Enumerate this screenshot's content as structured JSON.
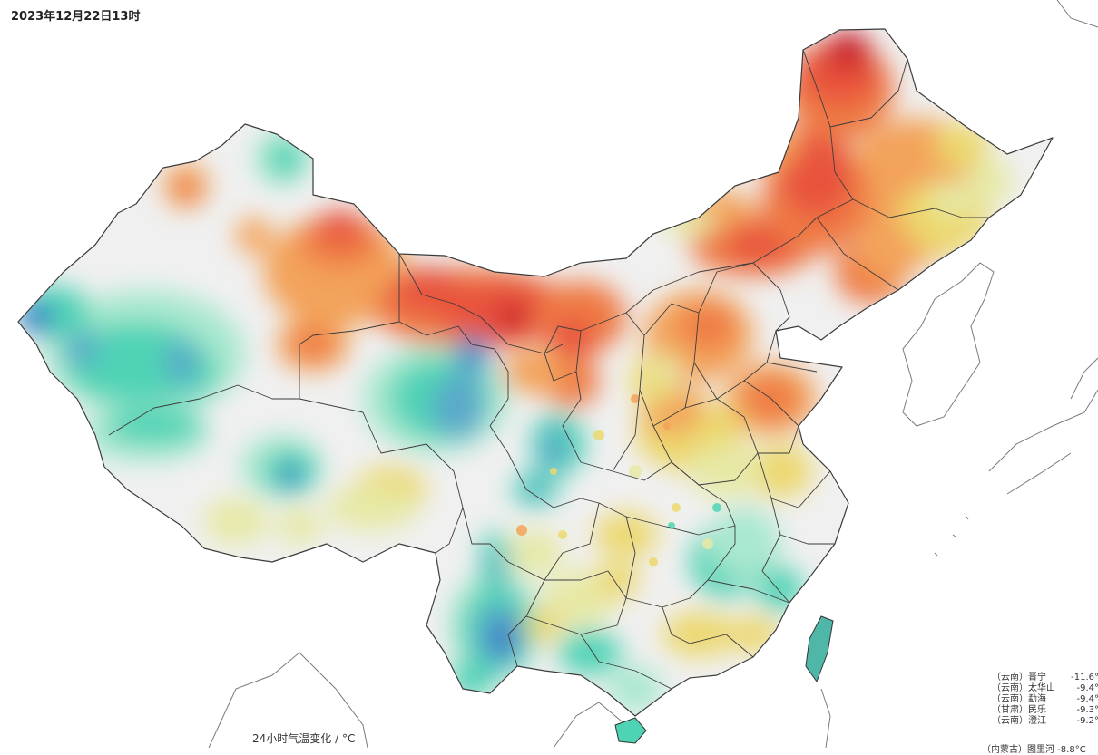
{
  "header": {
    "timestamp": "2023年12月22日13时"
  },
  "legend": {
    "title": "24小时气温变化 / °C"
  },
  "colors": {
    "deep_red": "#c81e2a",
    "red": "#e8523c",
    "orange_red": "#ef7a45",
    "orange": "#f3a35a",
    "yellow": "#ecd86e",
    "light_yellow": "#e6e9a4",
    "neutral": "#f0f0f0",
    "mint": "#a8e8cf",
    "teal": "#4fd3b5",
    "steel_blue": "#5aa9c9",
    "blue": "#3a78c8",
    "sea": "#ffffff",
    "border": "#3c3c3c"
  },
  "ranking": [
    {
      "loc": "（云南）晋宁",
      "val": "-11.6°C"
    },
    {
      "loc": "（云南）太华山",
      "val": "-9.4°C"
    },
    {
      "loc": "（云南）勐海",
      "val": "-9.4°C"
    },
    {
      "loc": "（甘肃）民乐",
      "val": "-9.3°C"
    },
    {
      "loc": "（云南）澄江",
      "val": "-9.2°C"
    }
  ],
  "ranking_cut": "（内蒙古）图里河 -8.8°C"
}
